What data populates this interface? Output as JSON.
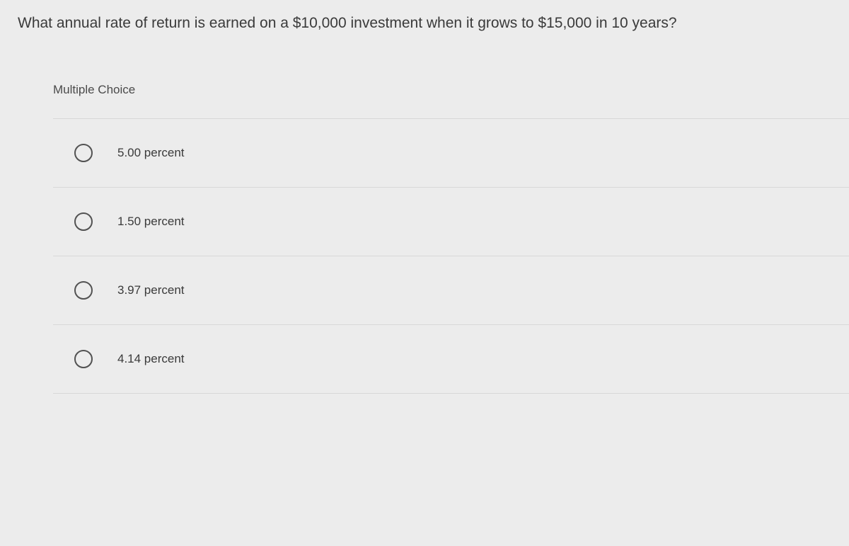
{
  "question": {
    "text": "What annual rate of return is earned on a $10,000 investment when it grows to $15,000 in 10 years?"
  },
  "section": {
    "label": "Multiple Choice"
  },
  "options": [
    {
      "label": "5.00 percent"
    },
    {
      "label": "1.50 percent"
    },
    {
      "label": "3.97 percent"
    },
    {
      "label": "4.14 percent"
    }
  ],
  "colors": {
    "background": "#ececec",
    "text_primary": "#3a3a3a",
    "text_secondary": "#4a4a4a",
    "radio_border": "#525252",
    "divider": "#d8d8d8"
  }
}
